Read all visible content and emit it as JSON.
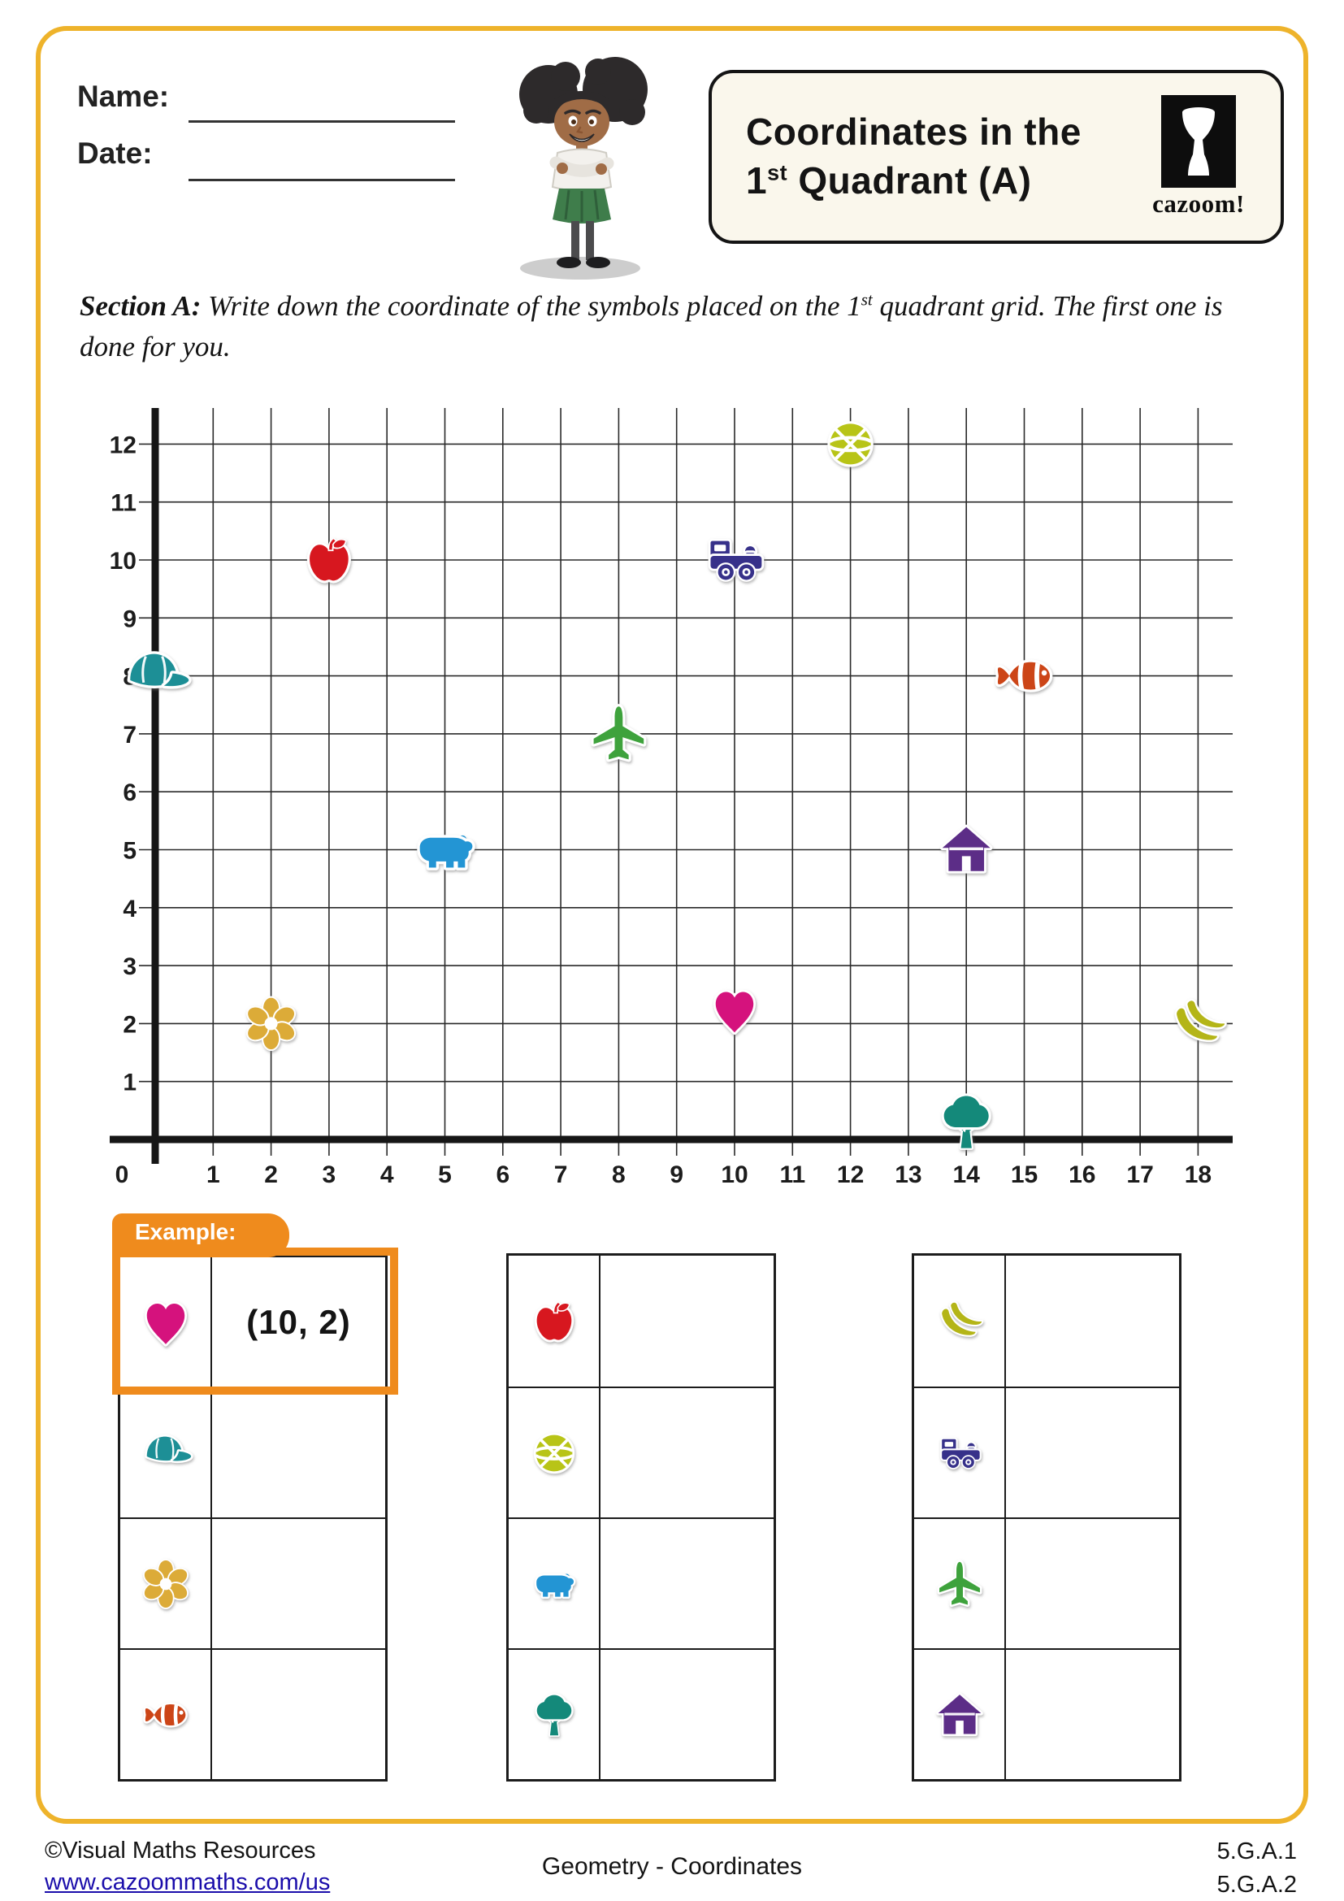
{
  "header": {
    "name_label": "Name:",
    "date_label": "Date:",
    "title_line1": "Coordinates in the",
    "title_line2_num": "1",
    "title_line2_sup": "st",
    "title_line2_rest": " Quadrant (A)",
    "logo_word": "cazoom!"
  },
  "section_a": {
    "label": "Section A:",
    "text_before": "  Write down the coordinate of the symbols placed on the 1",
    "sup": "st",
    "text_after": " quadrant grid. The first one is done for you."
  },
  "chart_data": {
    "type": "scatter",
    "title": "",
    "xlabel": "",
    "ylabel": "",
    "x_axis": {
      "min": 0,
      "max": 18,
      "tick_step": 1
    },
    "y_axis": {
      "min": 0,
      "max": 12,
      "tick_step": 1
    },
    "origin_label": "0",
    "grid": true,
    "symbols": [
      {
        "icon": "cap",
        "color": "#1d8f96",
        "x": 0,
        "y": 8
      },
      {
        "icon": "flower",
        "color": "#dcab38",
        "x": 2,
        "y": 2
      },
      {
        "icon": "apple",
        "color": "#d7171f",
        "x": 3,
        "y": 10
      },
      {
        "icon": "bear",
        "color": "#2395d4",
        "x": 5,
        "y": 5
      },
      {
        "icon": "plane",
        "color": "#3ea23c",
        "x": 8,
        "y": 7
      },
      {
        "icon": "train",
        "color": "#37318a",
        "x": 10,
        "y": 10
      },
      {
        "icon": "heart",
        "color": "#d5127d",
        "x": 10,
        "y": 2
      },
      {
        "icon": "basketball",
        "color": "#b8c417",
        "x": 12,
        "y": 12
      },
      {
        "icon": "house",
        "color": "#5c2d87",
        "x": 14,
        "y": 5
      },
      {
        "icon": "tree",
        "color": "#14897a",
        "x": 14,
        "y": 0
      },
      {
        "icon": "clownfish",
        "color": "#cc4517",
        "x": 15,
        "y": 8
      },
      {
        "icon": "bananas",
        "color": "#b4b517",
        "x": 18,
        "y": 2
      }
    ]
  },
  "tables": {
    "example_label": "Example:",
    "list": [
      {
        "rows": [
          {
            "icon": "heart",
            "answer": "(10, 2)",
            "example": true
          },
          {
            "icon": "cap",
            "answer": ""
          },
          {
            "icon": "flower",
            "answer": ""
          },
          {
            "icon": "clownfish",
            "answer": ""
          }
        ]
      },
      {
        "rows": [
          {
            "icon": "apple",
            "answer": ""
          },
          {
            "icon": "basketball",
            "answer": ""
          },
          {
            "icon": "bear",
            "answer": ""
          },
          {
            "icon": "tree",
            "answer": ""
          }
        ]
      },
      {
        "rows": [
          {
            "icon": "bananas",
            "answer": ""
          },
          {
            "icon": "train",
            "answer": ""
          },
          {
            "icon": "plane",
            "answer": ""
          },
          {
            "icon": "house",
            "answer": ""
          }
        ]
      }
    ]
  },
  "footer": {
    "copyright": "©Visual Maths Resources",
    "url": "www.cazoommaths.com/us",
    "center": "Geometry - Coordinates",
    "standards": [
      "5.G.A.1",
      "5.G.A.2"
    ]
  },
  "colors": {
    "page_border": "#eeb32b",
    "example_orange": "#ef8b1d",
    "title_box_bg": "#faf7ec",
    "link_blue": "#1a0dab"
  }
}
